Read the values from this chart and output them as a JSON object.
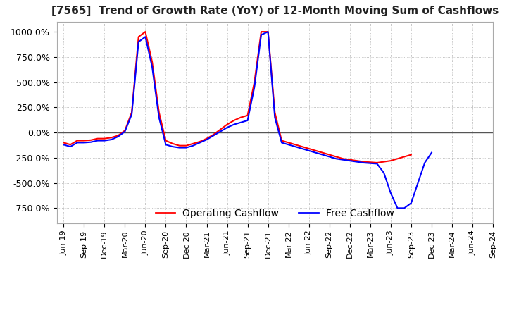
{
  "title": "[7565]  Trend of Growth Rate (YoY) of 12-Month Moving Sum of Cashflows",
  "title_fontsize": 11,
  "ylim": [
    -900,
    1100
  ],
  "yticks": [
    -750,
    -500,
    -250,
    0,
    250,
    500,
    750,
    1000
  ],
  "ytick_labels": [
    "-750.0%",
    "-500.0%",
    "-250.0%",
    "0.0%",
    "250.0%",
    "500.0%",
    "750.0%",
    "1000.0%"
  ],
  "legend_labels": [
    "Operating Cashflow",
    "Free Cashflow"
  ],
  "legend_colors": [
    "#ff0000",
    "#0000ff"
  ],
  "background_color": "#ffffff",
  "grid_color": "#b0b0b0",
  "x_tick_labels": [
    "Jun-19",
    "Sep-19",
    "Dec-19",
    "Mar-20",
    "Jun-20",
    "Sep-20",
    "Dec-20",
    "Mar-21",
    "Jun-21",
    "Sep-21",
    "Dec-21",
    "Mar-22",
    "Jun-22",
    "Sep-22",
    "Dec-22",
    "Mar-23",
    "Jun-23",
    "Sep-23",
    "Dec-23",
    "Mar-24",
    "Jun-24",
    "Sep-24"
  ],
  "op_cf_monthly": [
    -100,
    -120,
    -80,
    -80,
    -75,
    -60,
    -60,
    -50,
    -30,
    20,
    200,
    950,
    1000,
    700,
    200,
    -80,
    -110,
    -130,
    -130,
    -110,
    -90,
    -60,
    -20,
    30,
    80,
    120,
    150,
    170,
    500,
    1000,
    1000,
    200,
    -80,
    -100,
    -120,
    -140,
    -160,
    -180,
    -200,
    -220,
    -240,
    -260,
    -270,
    -280,
    -290,
    -295,
    -300,
    -290,
    -280,
    -260,
    -240,
    -220,
    null,
    null,
    null,
    null,
    null,
    null,
    null,
    null,
    null,
    null,
    null,
    null
  ],
  "free_cf_monthly": [
    -120,
    -140,
    -100,
    -100,
    -95,
    -80,
    -80,
    -70,
    -40,
    10,
    180,
    900,
    950,
    650,
    150,
    -120,
    -140,
    -150,
    -150,
    -130,
    -100,
    -70,
    -30,
    10,
    50,
    80,
    100,
    120,
    450,
    970,
    1000,
    150,
    -100,
    -120,
    -140,
    -160,
    -180,
    -200,
    -220,
    -240,
    -260,
    -270,
    -280,
    -290,
    -300,
    -305,
    -310,
    -400,
    -600,
    -750,
    -750,
    -700,
    -500,
    -300,
    -200,
    null,
    null,
    null,
    null,
    null,
    null,
    null,
    null,
    null
  ]
}
